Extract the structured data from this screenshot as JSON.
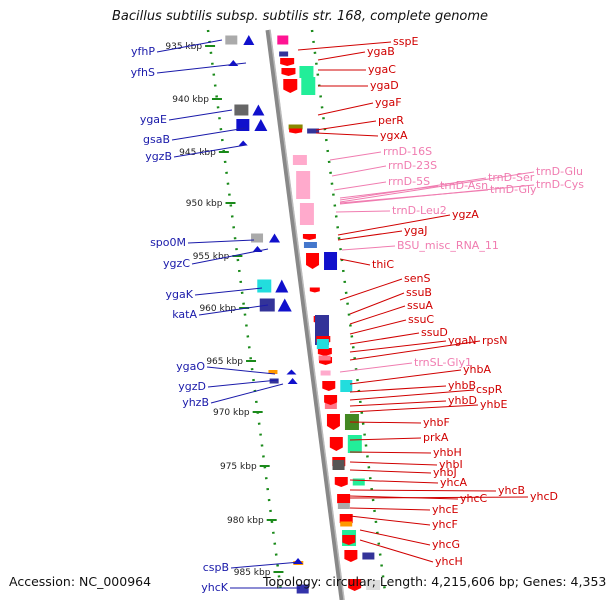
{
  "title": "Bacillus subtilis subsp. subtilis str. 168, complete genome",
  "accession": "Accession: NC_000964",
  "topology": "Topology: circular; Length: 4,215,606 bp; Genes: 4,353",
  "colors": {
    "left_gene_label": "#1a1aaa",
    "right_gene_label": "#d00000",
    "rna_label": "#f07cb0",
    "kbp_tick": "#1a8a1a",
    "backbone": "#999999"
  },
  "kbp_ticks": [
    {
      "label": "935 kbp"
    },
    {
      "label": "940 kbp"
    },
    {
      "label": "945 kbp"
    },
    {
      "label": "950 kbp"
    },
    {
      "label": "955 kbp"
    },
    {
      "label": "960 kbp"
    },
    {
      "label": "965 kbp"
    },
    {
      "label": "970 kbp"
    },
    {
      "label": "975 kbp"
    },
    {
      "label": "980 kbp"
    },
    {
      "label": "985 kbp"
    }
  ],
  "left_labels": [
    "yfhP",
    "yfhS",
    "ygaE",
    "gsaB",
    "ygzB",
    "spo0M",
    "ygzC",
    "ygaK",
    "katA",
    "ygaO",
    "ygzD",
    "yhzB",
    "cspB",
    "yhcK"
  ],
  "right_labels": [
    "sspE",
    "ygaB",
    "ygaC",
    "ygaD",
    "ygaF",
    "perR",
    "ygxA",
    "ygzA",
    "ygaJ",
    "thiC",
    "senS",
    "ssuB",
    "ssuA",
    "ssuC",
    "ssuD",
    "ygaN",
    "rpsN",
    "yhbA",
    "yhbB",
    "cspR",
    "yhbD",
    "yhbE",
    "yhbF",
    "prkA",
    "yhbH",
    "yhbI",
    "yhbJ",
    "yhcA",
    "yhcB",
    "yhcC",
    "yhcD",
    "yhcE",
    "yhcF",
    "yhcG",
    "yhcH"
  ],
  "rna_labels": [
    "rrnD-16S",
    "rrnD-23S",
    "rrnD-5S",
    "trnD-Asn",
    "trnD-Ser",
    "trnD-Glu",
    "trnD-Gly",
    "trnD-Cys",
    "trnD-Leu2",
    "BSU_misc_RNA_11",
    "trnSL-Gly1"
  ]
}
